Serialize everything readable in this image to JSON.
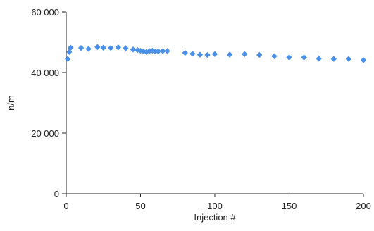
{
  "chart_data": {
    "type": "scatter",
    "title": "",
    "xlabel": "Injection #",
    "ylabel": "n/m",
    "xlim": [
      0,
      200
    ],
    "ylim": [
      0,
      60000
    ],
    "xticks": [
      0,
      50,
      100,
      150,
      200
    ],
    "yticks": [
      0,
      20000,
      40000,
      60000
    ],
    "xtick_labels": [
      "0",
      "50",
      "100",
      "150",
      "200"
    ],
    "ytick_labels": [
      "0",
      "20 000",
      "40 000",
      "60 000"
    ],
    "grid": false,
    "legend": "none",
    "marker": "diamond",
    "colors": {
      "marker": "#4A90E8",
      "axis": "#222222"
    },
    "series": [
      {
        "x": [
          1,
          2,
          3,
          10,
          15,
          21,
          25,
          30,
          35,
          40,
          45,
          48,
          50,
          52,
          54,
          56,
          58,
          60,
          62,
          65,
          68,
          80,
          85,
          90,
          95,
          100,
          110,
          120,
          130,
          140,
          150,
          160,
          170,
          180,
          190,
          200
        ],
        "y": [
          44500,
          46800,
          48200,
          48100,
          47800,
          48400,
          48200,
          48100,
          48300,
          48000,
          47600,
          47400,
          47200,
          47000,
          46800,
          47100,
          47200,
          47000,
          47000,
          47100,
          47100,
          46500,
          46200,
          45900,
          45800,
          46100,
          45900,
          46100,
          45800,
          45400,
          45000,
          45000,
          44600,
          44500,
          44500,
          44100
        ]
      }
    ]
  }
}
